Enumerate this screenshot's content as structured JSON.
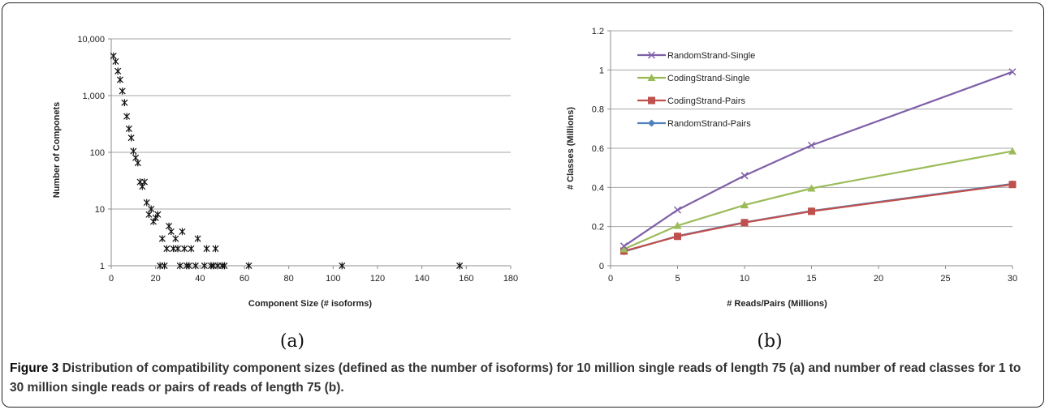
{
  "colors": {
    "scatter": "#111111",
    "grid": "#a6a6a6",
    "axis": "#8c8c8c"
  },
  "chart_data": [
    {
      "type": "scatter",
      "title": "",
      "subplot_label": "(a)",
      "xlabel": "Component Size (# isoforms)",
      "ylabel": "Number of Componets",
      "xlim": [
        0,
        180
      ],
      "ylim": [
        1,
        10000
      ],
      "yscale": "log",
      "grid": "horizontal",
      "x_ticks": [
        "0",
        "20",
        "40",
        "60",
        "80",
        "100",
        "120",
        "140",
        "160",
        "180"
      ],
      "y_ticks": [
        "1",
        "10",
        "100",
        "1,000",
        "10,000"
      ],
      "marker": "star",
      "points": [
        [
          1,
          5000
        ],
        [
          2,
          4000
        ],
        [
          3,
          2700
        ],
        [
          4,
          1900
        ],
        [
          5,
          1200
        ],
        [
          6,
          750
        ],
        [
          7,
          430
        ],
        [
          8,
          260
        ],
        [
          9,
          180
        ],
        [
          10,
          105
        ],
        [
          11,
          80
        ],
        [
          12,
          65
        ],
        [
          13,
          30
        ],
        [
          14,
          25
        ],
        [
          15,
          30
        ],
        [
          16,
          13
        ],
        [
          17,
          8
        ],
        [
          18,
          10
        ],
        [
          19,
          6
        ],
        [
          20,
          7
        ],
        [
          21,
          8
        ],
        [
          22,
          1
        ],
        [
          23,
          3
        ],
        [
          24,
          1
        ],
        [
          25,
          2
        ],
        [
          26,
          5
        ],
        [
          27,
          4
        ],
        [
          28,
          2
        ],
        [
          29,
          3
        ],
        [
          30,
          2
        ],
        [
          31,
          1
        ],
        [
          32,
          4
        ],
        [
          33,
          2
        ],
        [
          34,
          1
        ],
        [
          35,
          1
        ],
        [
          36,
          2
        ],
        [
          38,
          1
        ],
        [
          39,
          3
        ],
        [
          42,
          1
        ],
        [
          43,
          2
        ],
        [
          45,
          1
        ],
        [
          46,
          1
        ],
        [
          47,
          2
        ],
        [
          48,
          1
        ],
        [
          50,
          1
        ],
        [
          51,
          1
        ],
        [
          62,
          1
        ],
        [
          104,
          1
        ],
        [
          157,
          1
        ]
      ]
    },
    {
      "type": "line",
      "title": "",
      "subplot_label": "(b)",
      "xlabel": "# Reads/Pairs (Millions)",
      "ylabel": "# Classes (Millions)",
      "xlim": [
        0,
        30
      ],
      "ylim": [
        0,
        1.2
      ],
      "grid": "horizontal",
      "legend_position": "top-left",
      "x_ticks": [
        "0",
        "5",
        "10",
        "15",
        "20",
        "25",
        "30"
      ],
      "y_ticks": [
        "0",
        "0.2",
        "0.4",
        "0.6",
        "0.8",
        "1",
        "1.2"
      ],
      "x": [
        1,
        5,
        10,
        15,
        30
      ],
      "series": [
        {
          "name": "RandomStrand-Single",
          "color": "#7f5fa8",
          "marker": "x",
          "values": [
            0.1,
            0.285,
            0.46,
            0.615,
            0.99
          ]
        },
        {
          "name": "CodingStrand-Single",
          "color": "#9bbb59",
          "marker": "triangle",
          "values": [
            0.085,
            0.205,
            0.31,
            0.395,
            0.585
          ]
        },
        {
          "name": "CodingStrand-Pairs",
          "color": "#c0504d",
          "marker": "square",
          "values": [
            0.075,
            0.15,
            0.22,
            0.278,
            0.415
          ]
        },
        {
          "name": "RandomStrand-Pairs",
          "color": "#4f81bd",
          "marker": "diamond",
          "values": [
            0.072,
            0.152,
            0.222,
            0.28,
            0.418
          ]
        }
      ]
    }
  ],
  "caption": {
    "lead": "Figure 3",
    "text": "Distribution of compatibility component sizes (defined as the number of isoforms) for 10 million single reads of length 75 (a) and number of read classes for 1 to 30 million single reads or pairs of reads of length 75 (b)."
  }
}
